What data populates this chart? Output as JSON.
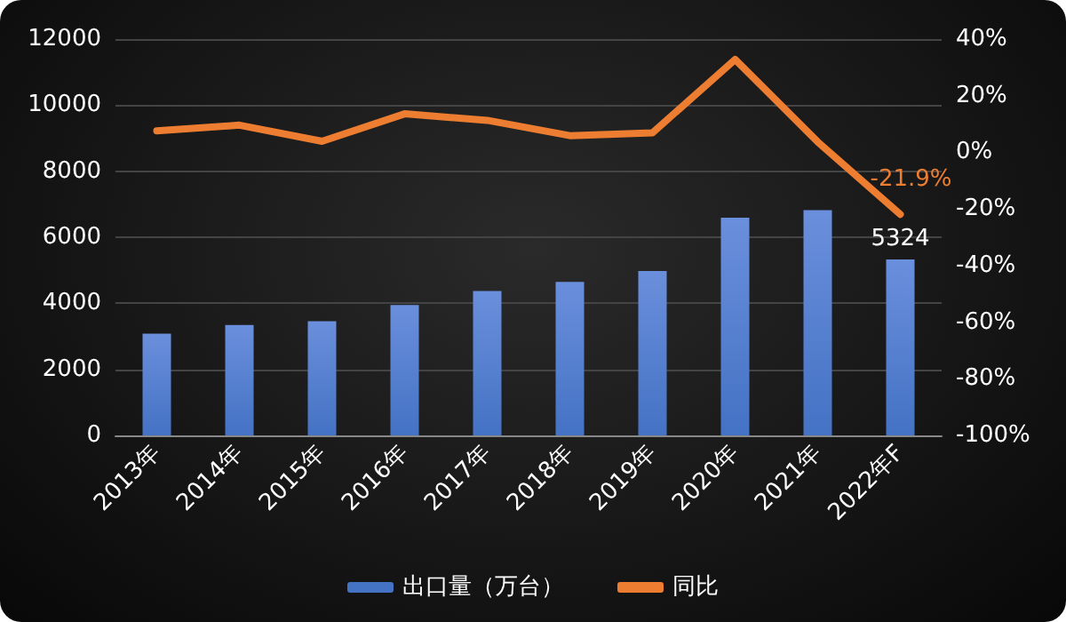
{
  "chart_data": {
    "type": "bar",
    "categories": [
      "2013年",
      "2014年",
      "2015年",
      "2016年",
      "2017年",
      "2018年",
      "2019年",
      "2020年",
      "2021年",
      "2022年F"
    ],
    "series": [
      {
        "name": "出口量（万台）",
        "color": "#4472c4",
        "values": [
          3080,
          3340,
          3460,
          3950,
          4370,
          4650,
          4980,
          6590,
          6820,
          5324
        ],
        "value_labels": [
          null,
          null,
          null,
          null,
          null,
          null,
          null,
          null,
          null,
          "5324"
        ]
      },
      {
        "name": "同比",
        "type": "line",
        "axis": "y2",
        "color": "#ed7d31",
        "values": [
          7.6,
          9.6,
          3.9,
          13.6,
          11.3,
          5.9,
          6.9,
          32.8,
          3.7,
          -21.9
        ],
        "value_labels": [
          null,
          null,
          null,
          null,
          null,
          null,
          null,
          null,
          null,
          "-21.9%"
        ]
      }
    ],
    "ylim": [
      0,
      12000
    ],
    "yticks": [
      0,
      2000,
      4000,
      6000,
      8000,
      10000,
      12000
    ],
    "y2lim": [
      -100,
      40
    ],
    "y2ticks": [
      {
        "value": -100,
        "label": "-100%"
      },
      {
        "value": -80,
        "label": "-80%"
      },
      {
        "value": -60,
        "label": "-60%"
      },
      {
        "value": -40,
        "label": "-40%"
      },
      {
        "value": -20,
        "label": "-20%"
      },
      {
        "value": 0,
        "label": "0%"
      },
      {
        "value": 20,
        "label": "20%"
      },
      {
        "value": 40,
        "label": "40%"
      }
    ],
    "grid": "y",
    "legend": "bottom",
    "marker": "none",
    "line_style": "solid"
  }
}
